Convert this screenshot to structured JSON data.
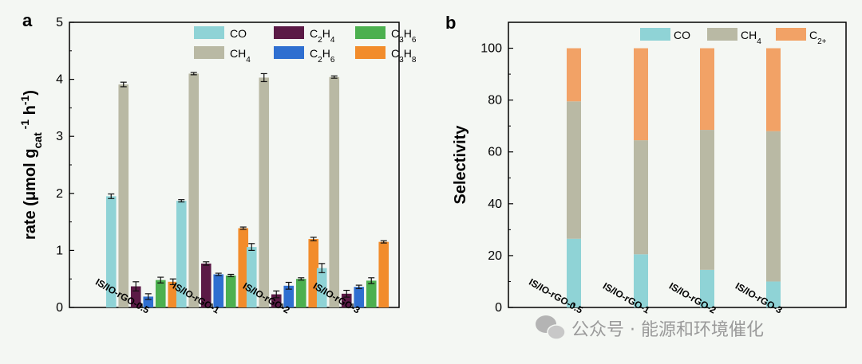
{
  "panel_labels": [
    "a",
    "b"
  ],
  "watermark": {
    "text": "公众号 · 能源和环境催化",
    "icon": "wechat-icon"
  },
  "colors": {
    "CO": "#8fd3d6",
    "CH4": "#b9b9a4",
    "C2H4": "#5b1a46",
    "C2H6": "#2f6fd0",
    "C3H6": "#4cb04f",
    "C3H8": "#f28c2b",
    "C2plus": "#f2a266"
  },
  "chart_data": [
    {
      "type": "bar",
      "panel": "a",
      "ylabel": "rate (μmol gcat-1 h-1)",
      "ylabel_parts": {
        "main": "rate (μmol g",
        "sub": "cat",
        "sup": "-1",
        "tail": " h",
        "sup2": "-1",
        "close": ")"
      },
      "ylim": [
        0,
        5
      ],
      "yticks": [
        "0",
        "1",
        "2",
        "3",
        "4",
        "5"
      ],
      "categories": [
        "IS/IO-rGO-0.5",
        "IS/IO-rGO-1",
        "IS/IO-rGO-2",
        "IS/IO-rGO-3"
      ],
      "legend": [
        {
          "key": "CO",
          "base": "CO",
          "sub1": "",
          "mid": "",
          "sub2": ""
        },
        {
          "key": "C2H4",
          "base": "C",
          "sub1": "2",
          "mid": "H",
          "sub2": "4"
        },
        {
          "key": "C3H6",
          "base": "C",
          "sub1": "3",
          "mid": "H",
          "sub2": "6"
        },
        {
          "key": "CH4",
          "base": "CH",
          "sub1": "4",
          "mid": "",
          "sub2": ""
        },
        {
          "key": "C2H6",
          "base": "C",
          "sub1": "2",
          "mid": "H",
          "sub2": "6"
        },
        {
          "key": "C3H8",
          "base": "C",
          "sub1": "3",
          "mid": "H",
          "sub2": "8"
        }
      ],
      "series": [
        {
          "name": "CO",
          "key": "CO",
          "values": [
            1.95,
            1.87,
            1.06,
            0.69
          ],
          "errors": [
            0.04,
            0.02,
            0.06,
            0.08
          ]
        },
        {
          "name": "CH4",
          "key": "CH4",
          "values": [
            3.91,
            4.1,
            4.03,
            4.04
          ],
          "errors": [
            0.04,
            0.02,
            0.07,
            0.02
          ]
        },
        {
          "name": "C2H4",
          "key": "C2H4",
          "values": [
            0.37,
            0.77,
            0.23,
            0.24
          ],
          "errors": [
            0.08,
            0.03,
            0.06,
            0.06
          ]
        },
        {
          "name": "C2H6",
          "key": "C2H6",
          "values": [
            0.19,
            0.58,
            0.38,
            0.36
          ],
          "errors": [
            0.05,
            0.02,
            0.06,
            0.03
          ]
        },
        {
          "name": "C3H6",
          "key": "C3H6",
          "values": [
            0.48,
            0.56,
            0.5,
            0.47
          ],
          "errors": [
            0.05,
            0.02,
            0.02,
            0.05
          ]
        },
        {
          "name": "C3H8",
          "key": "C3H8",
          "values": [
            0.45,
            1.39,
            1.2,
            1.15
          ],
          "errors": [
            0.05,
            0.02,
            0.03,
            0.02
          ]
        }
      ]
    },
    {
      "type": "bar",
      "stacked": true,
      "panel": "b",
      "ylabel": "Selectivity",
      "ylim": [
        0,
        110
      ],
      "yticks": [
        "0",
        "20",
        "40",
        "60",
        "80",
        "100"
      ],
      "categories": [
        "IS/IO-rGO-0.5",
        "IS/IO-rGO-1",
        "IS/IO-rGO-2",
        "IS/IO-rGO-3"
      ],
      "legend": [
        {
          "key": "CO",
          "base": "CO",
          "sub1": ""
        },
        {
          "key": "CH4",
          "base": "CH",
          "sub1": "4"
        },
        {
          "key": "C2plus",
          "base": "C",
          "sub1": "2+"
        }
      ],
      "series": [
        {
          "name": "CO",
          "key": "CO",
          "values": [
            26.5,
            20.5,
            14.5,
            10
          ]
        },
        {
          "name": "CH4",
          "key": "CH4",
          "values": [
            53,
            44,
            54,
            58
          ]
        },
        {
          "name": "C2+",
          "key": "C2plus",
          "values": [
            20.5,
            35.5,
            31.5,
            32
          ]
        }
      ]
    }
  ]
}
